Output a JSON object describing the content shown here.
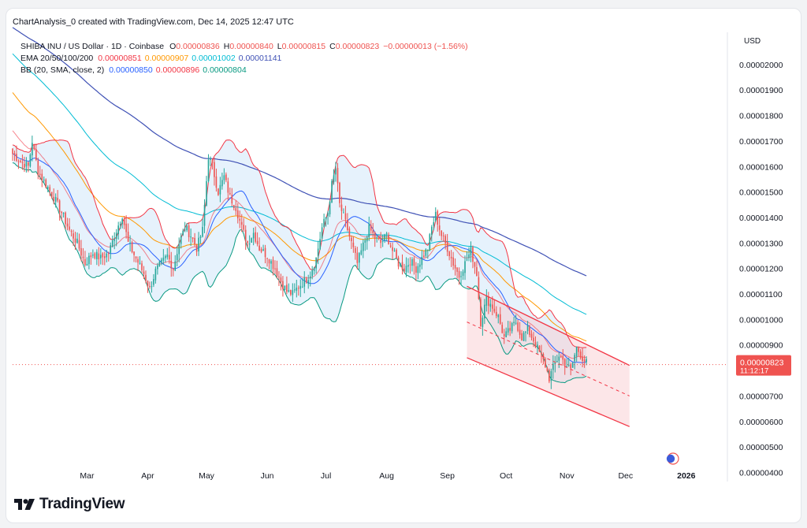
{
  "header": {
    "caption": "ChartAnalysis_0 created with TradingView.com, Dec 14, 2025 12:47 UTC"
  },
  "legend": {
    "symbol": "SHIBA INU / US Dollar · 1D · Coinbase",
    "ohlc": [
      {
        "k": "O",
        "v": "0.00000836"
      },
      {
        "k": "H",
        "v": "0.00000840"
      },
      {
        "k": "L",
        "v": "0.00000815"
      },
      {
        "k": "C",
        "v": "0.00000823"
      }
    ],
    "change": "−0.00000013 (−1.56%)",
    "ema_label": "EMA 20/50/100/200",
    "ema_values": [
      "0.00000851",
      "0.00000907",
      "0.00001002",
      "0.00001141"
    ],
    "bb_label": "BB (20, SMA, close, 2)",
    "bb_values": [
      "0.00000850",
      "0.00000896",
      "0.00000804"
    ]
  },
  "price_axis": {
    "currency": "USD",
    "ticks": [
      "0.00002000",
      "0.00001900",
      "0.00001800",
      "0.00001700",
      "0.00001600",
      "0.00001500",
      "0.00001400",
      "0.00001300",
      "0.00001200",
      "0.00001100",
      "0.00001000",
      "0.00000900",
      "0.00000800",
      "0.00000700",
      "0.00000600",
      "0.00000500",
      "0.00000400"
    ],
    "last_price": "0.00000823",
    "countdown": "11:12:17"
  },
  "time_axis": {
    "ticks": [
      "Mar",
      "Apr",
      "May",
      "Jun",
      "Jul",
      "Aug",
      "Sep",
      "Oct",
      "Nov",
      "Dec",
      "2026"
    ]
  },
  "brand": {
    "name": "TradingView"
  },
  "colors": {
    "up": "#26a69a",
    "down": "#ef5350",
    "ema20": "#f23645",
    "ema50": "#ff9800",
    "ema100": "#00bcd4",
    "ema200": "#3f51b5",
    "bb_basis": "#2962ff",
    "bb_upper": "#f23645",
    "bb_lower": "#089981",
    "channel": "#f23645",
    "bb_fill": "#ddeefb"
  },
  "chart_data": {
    "type": "candlestick",
    "title": "SHIBA INU / US Dollar · 1D · Coinbase",
    "ylabel": "USD",
    "ylim": [
      3.8e-06,
      2.12e-05
    ],
    "x_range_days": [
      0,
      330
    ],
    "date_ticks": [
      {
        "label": "Mar",
        "day": 38
      },
      {
        "label": "Apr",
        "day": 69
      },
      {
        "label": "May",
        "day": 99
      },
      {
        "label": "Jun",
        "day": 130
      },
      {
        "label": "Jul",
        "day": 160
      },
      {
        "label": "Aug",
        "day": 191
      },
      {
        "label": "Sep",
        "day": 222
      },
      {
        "label": "Oct",
        "day": 252
      },
      {
        "label": "Nov",
        "day": 283
      },
      {
        "label": "Dec",
        "day": 313
      },
      {
        "label": "2026",
        "day": 344
      }
    ],
    "close_path": [
      [
        0,
        16.5
      ],
      [
        4,
        16.2
      ],
      [
        8,
        16.0
      ],
      [
        10,
        17.0
      ],
      [
        13,
        15.8
      ],
      [
        17,
        15.3
      ],
      [
        21,
        14.8
      ],
      [
        25,
        14.2
      ],
      [
        29,
        13.5
      ],
      [
        33,
        13.0
      ],
      [
        37,
        12.2
      ],
      [
        41,
        12.6
      ],
      [
        45,
        12.4
      ],
      [
        49,
        12.6
      ],
      [
        53,
        13.5
      ],
      [
        56,
        14.1
      ],
      [
        59,
        13.0
      ],
      [
        63,
        12.4
      ],
      [
        67,
        11.8
      ],
      [
        70,
        11.2
      ],
      [
        73,
        11.9
      ],
      [
        76,
        12.2
      ],
      [
        79,
        12.5
      ],
      [
        82,
        12.0
      ],
      [
        85,
        13.0
      ],
      [
        88,
        13.6
      ],
      [
        91,
        13.3
      ],
      [
        94,
        12.8
      ],
      [
        97,
        13.5
      ],
      [
        100,
        16.4
      ],
      [
        102,
        16.0
      ],
      [
        105,
        15.0
      ],
      [
        108,
        15.6
      ],
      [
        111,
        14.8
      ],
      [
        114,
        14.4
      ],
      [
        117,
        13.6
      ],
      [
        120,
        13.0
      ],
      [
        123,
        13.4
      ],
      [
        126,
        12.8
      ],
      [
        130,
        12.5
      ],
      [
        134,
        12.0
      ],
      [
        137,
        11.5
      ],
      [
        140,
        11.1
      ],
      [
        143,
        11.0
      ],
      [
        146,
        11.3
      ],
      [
        149,
        11.5
      ],
      [
        152,
        11.8
      ],
      [
        155,
        12.4
      ],
      [
        158,
        13.6
      ],
      [
        161,
        14.2
      ],
      [
        163,
        15.3
      ],
      [
        165,
        15.9
      ],
      [
        167,
        14.5
      ],
      [
        170,
        13.8
      ],
      [
        173,
        13.0
      ],
      [
        176,
        12.2
      ],
      [
        179,
        12.9
      ],
      [
        182,
        13.6
      ],
      [
        185,
        13.2
      ],
      [
        188,
        13.0
      ],
      [
        191,
        13.3
      ],
      [
        194,
        12.7
      ],
      [
        197,
        12.2
      ],
      [
        200,
        12.0
      ],
      [
        203,
        12.3
      ],
      [
        206,
        12.0
      ],
      [
        209,
        12.4
      ],
      [
        212,
        12.8
      ],
      [
        214,
        13.6
      ],
      [
        216,
        14.1
      ],
      [
        219,
        13.3
      ],
      [
        222,
        12.8
      ],
      [
        225,
        12.2
      ],
      [
        228,
        11.7
      ],
      [
        231,
        12.2
      ],
      [
        234,
        12.7
      ],
      [
        237,
        11.8
      ],
      [
        239,
        9.9
      ],
      [
        242,
        10.8
      ],
      [
        245,
        10.5
      ],
      [
        248,
        10.1
      ],
      [
        251,
        9.3
      ],
      [
        254,
        9.6
      ],
      [
        257,
        9.9
      ],
      [
        260,
        9.3
      ],
      [
        263,
        9.6
      ],
      [
        266,
        9.2
      ],
      [
        269,
        8.7
      ],
      [
        272,
        8.2
      ],
      [
        274,
        7.7
      ],
      [
        276,
        8.1
      ],
      [
        279,
        8.6
      ],
      [
        282,
        8.3
      ],
      [
        285,
        8.0
      ],
      [
        288,
        8.9
      ],
      [
        291,
        8.5
      ],
      [
        293,
        8.3
      ]
    ],
    "ema": [
      {
        "name": "EMA 20",
        "color": "#f23645",
        "last": 8.51e-06
      },
      {
        "name": "EMA 50",
        "color": "#ff9800",
        "last": 9.07e-06
      },
      {
        "name": "EMA 100",
        "color": "#00bcd4",
        "last": 1.002e-05
      },
      {
        "name": "EMA 200",
        "color": "#3f51b5",
        "last": 1.141e-05
      }
    ],
    "bollinger": {
      "period": 20,
      "basis": 8.5e-06,
      "upper": 8.96e-06,
      "lower": 8.04e-06
    },
    "channel": {
      "upper": [
        [
          232,
          11.3
        ],
        [
          315,
          8.2
        ]
      ],
      "lower": [
        [
          232,
          8.5
        ],
        [
          315,
          5.8
        ]
      ],
      "mid_dashed": [
        [
          232,
          9.9
        ],
        [
          315,
          7.0
        ]
      ]
    },
    "last": {
      "open": 8.36e-06,
      "high": 8.4e-06,
      "low": 8.15e-06,
      "close": 8.23e-06,
      "change": -1.3e-07,
      "change_pct": -1.56
    }
  }
}
